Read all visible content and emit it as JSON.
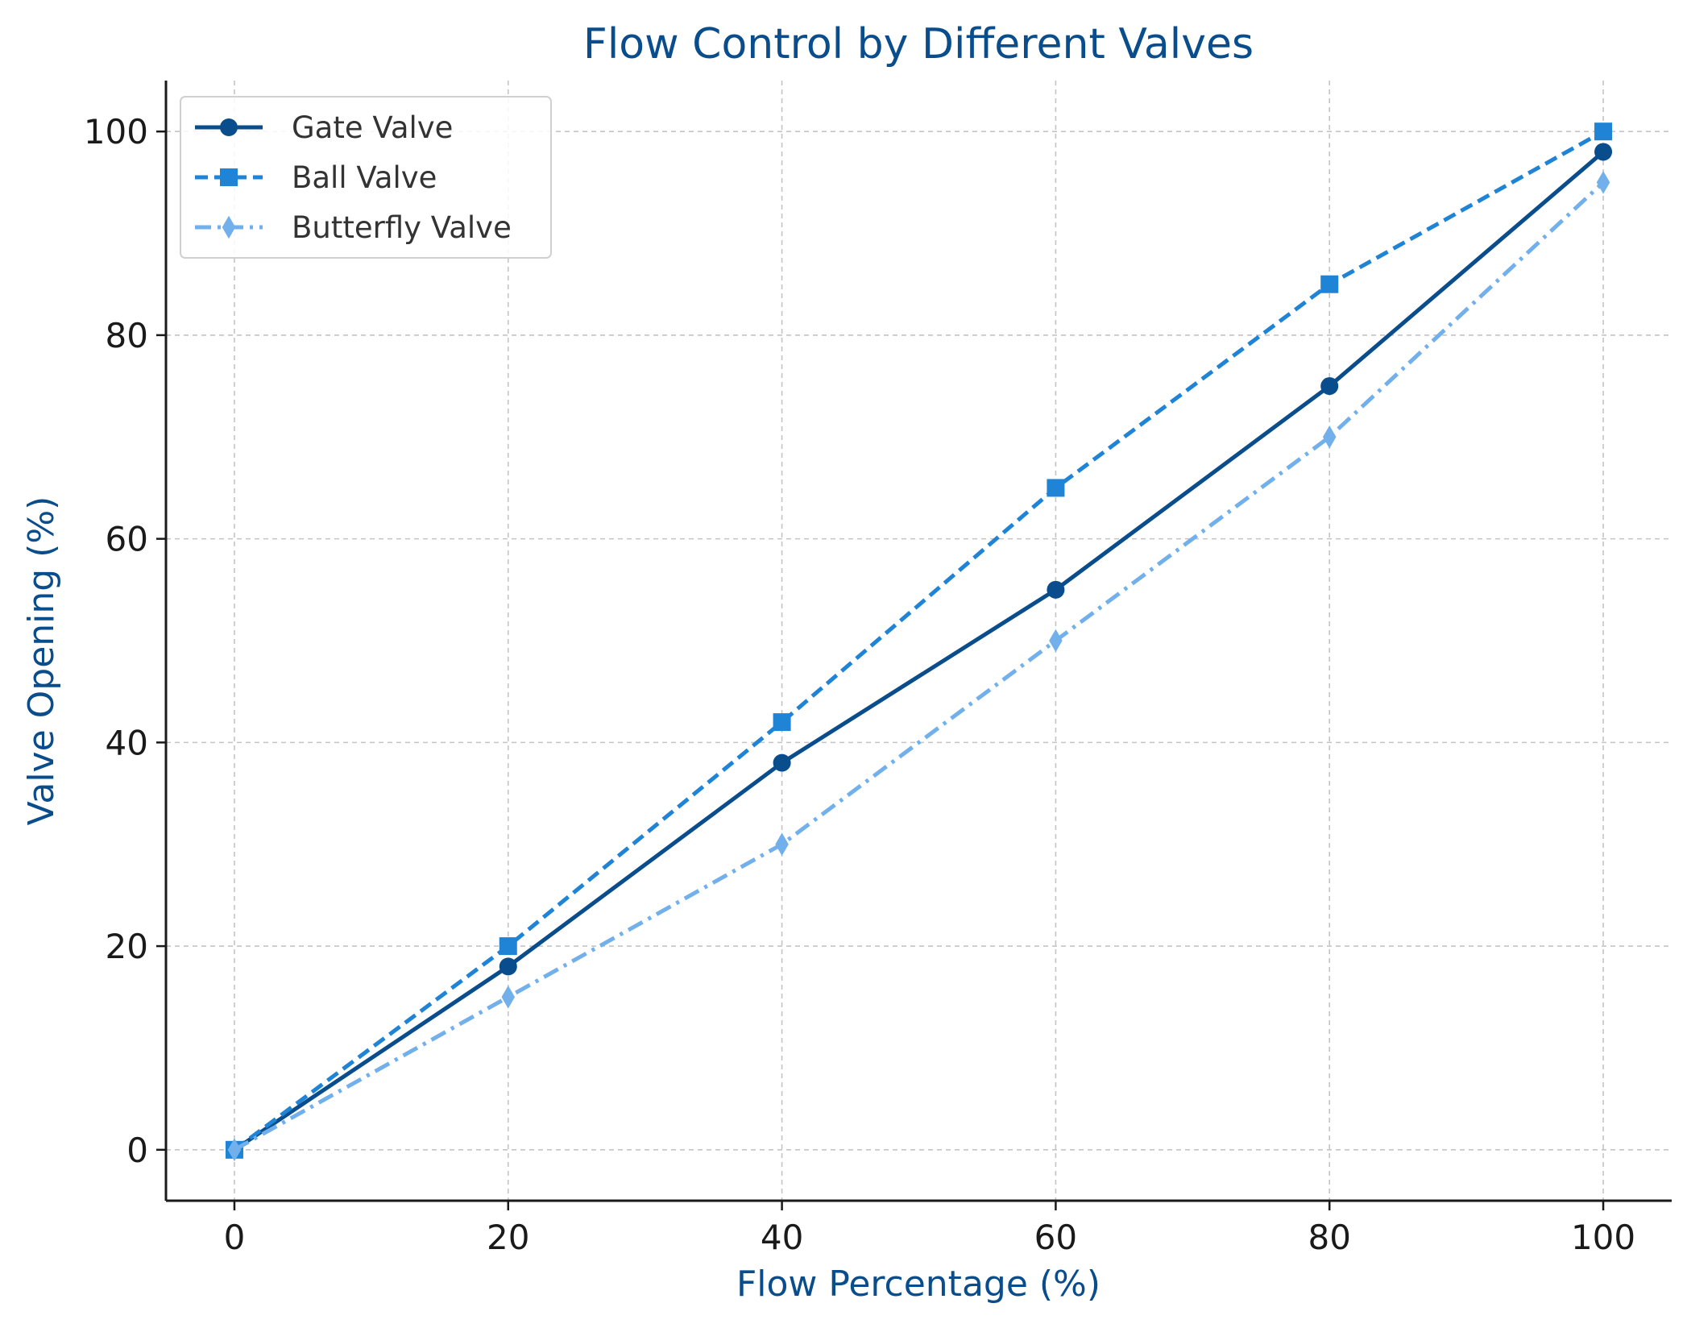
{
  "chart_data": {
    "type": "line",
    "title": "Flow Control by Different Valves",
    "xlabel": "Flow Percentage (%)",
    "ylabel": "Valve Opening (%)",
    "x": [
      0,
      20,
      40,
      60,
      80,
      100
    ],
    "xlim": [
      -5,
      105
    ],
    "ylim": [
      -5,
      105
    ],
    "xticks": [
      0,
      20,
      40,
      60,
      80,
      100
    ],
    "yticks": [
      0,
      20,
      40,
      60,
      80,
      100
    ],
    "grid": true,
    "legend_position": "top-left",
    "series": [
      {
        "name": "Gate Valve",
        "values": [
          0,
          18,
          38,
          55,
          75,
          98
        ],
        "color": "#0a4d8c",
        "line_style": "solid",
        "marker": "circle"
      },
      {
        "name": "Ball Valve",
        "values": [
          0,
          20,
          42,
          65,
          85,
          100
        ],
        "color": "#1f84d6",
        "line_style": "dashed",
        "marker": "square"
      },
      {
        "name": "Butterfly Valve",
        "values": [
          0,
          15,
          30,
          50,
          70,
          95
        ],
        "color": "#72b0ec",
        "line_style": "dash-dot",
        "marker": "diamond"
      }
    ],
    "title_color": "#0a4d8c",
    "axis_label_color": "#0a4d8c"
  }
}
